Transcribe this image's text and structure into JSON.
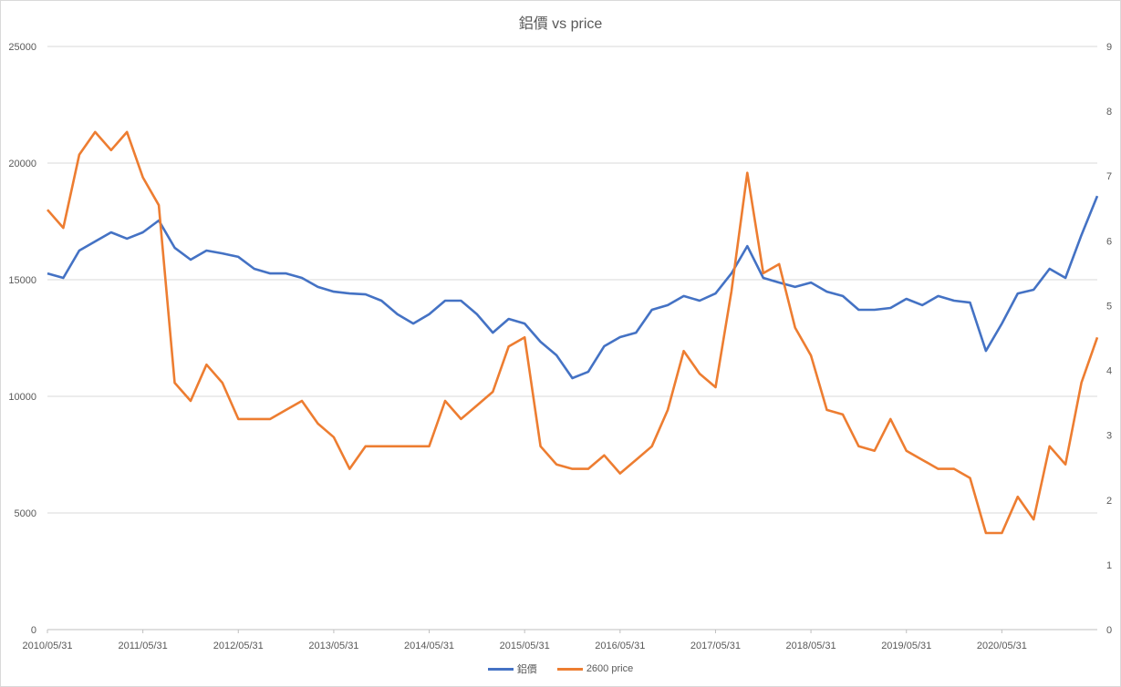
{
  "chart_data": {
    "type": "line",
    "title": "鋁價 vs price",
    "x_start": "2010/05/31",
    "x_step_months": 2,
    "x_tick_labels": [
      "2010/05/31",
      "2011/05/31",
      "2012/05/31",
      "2013/05/31",
      "2014/05/31",
      "2015/05/31",
      "2016/05/31",
      "2017/05/31",
      "2018/05/31",
      "2019/05/31",
      "2020/05/31"
    ],
    "y_left": {
      "min": 0,
      "max": 25000,
      "step": 5000,
      "ticks": [
        "0",
        "5000",
        "10000",
        "15000",
        "20000",
        "25000"
      ]
    },
    "y_right": {
      "min": 0,
      "max": 9,
      "step": 1,
      "ticks": [
        "0",
        "1",
        "2",
        "3",
        "4",
        "5",
        "6",
        "7",
        "8",
        "9"
      ]
    },
    "grid": true,
    "legend_position": "bottom",
    "series": [
      {
        "name": "鋁價",
        "axis": "left",
        "color": "#4472c4",
        "values": [
          15270,
          15080,
          16250,
          16640,
          17030,
          16760,
          17030,
          17540,
          16370,
          15860,
          16250,
          16130,
          15980,
          15470,
          15270,
          15270,
          15080,
          14690,
          14490,
          14410,
          14370,
          14100,
          13520,
          13120,
          13520,
          14100,
          14100,
          13520,
          12730,
          13320,
          13120,
          12340,
          11760,
          10780,
          11050,
          12150,
          12540,
          12730,
          13710,
          13910,
          14300,
          14100,
          14410,
          15270,
          16440,
          15080,
          14880,
          14690,
          14880,
          14490,
          14300,
          13710,
          13710,
          13790,
          14180,
          13910,
          14300,
          14100,
          14020,
          11950,
          13120,
          14410,
          14570,
          15470,
          15080,
          16910,
          18590
        ]
      },
      {
        "name": "2600 price",
        "axis": "right",
        "color": "#ed7d31",
        "values": [
          6.48,
          6.2,
          7.33,
          7.68,
          7.4,
          7.68,
          6.98,
          6.55,
          3.81,
          3.53,
          4.09,
          3.81,
          3.25,
          3.25,
          3.25,
          3.39,
          3.53,
          3.18,
          2.97,
          2.48,
          2.83,
          2.83,
          2.83,
          2.83,
          2.83,
          3.53,
          3.25,
          3.46,
          3.67,
          4.37,
          4.51,
          2.83,
          2.55,
          2.48,
          2.48,
          2.69,
          2.41,
          2.62,
          2.83,
          3.39,
          4.3,
          3.95,
          3.74,
          5.22,
          7.05,
          5.5,
          5.64,
          4.66,
          4.23,
          3.39,
          3.32,
          2.83,
          2.76,
          3.25,
          2.76,
          2.62,
          2.48,
          2.48,
          2.34,
          1.49,
          1.49,
          2.05,
          1.7,
          2.83,
          2.55,
          3.81,
          4.51
        ]
      }
    ]
  }
}
